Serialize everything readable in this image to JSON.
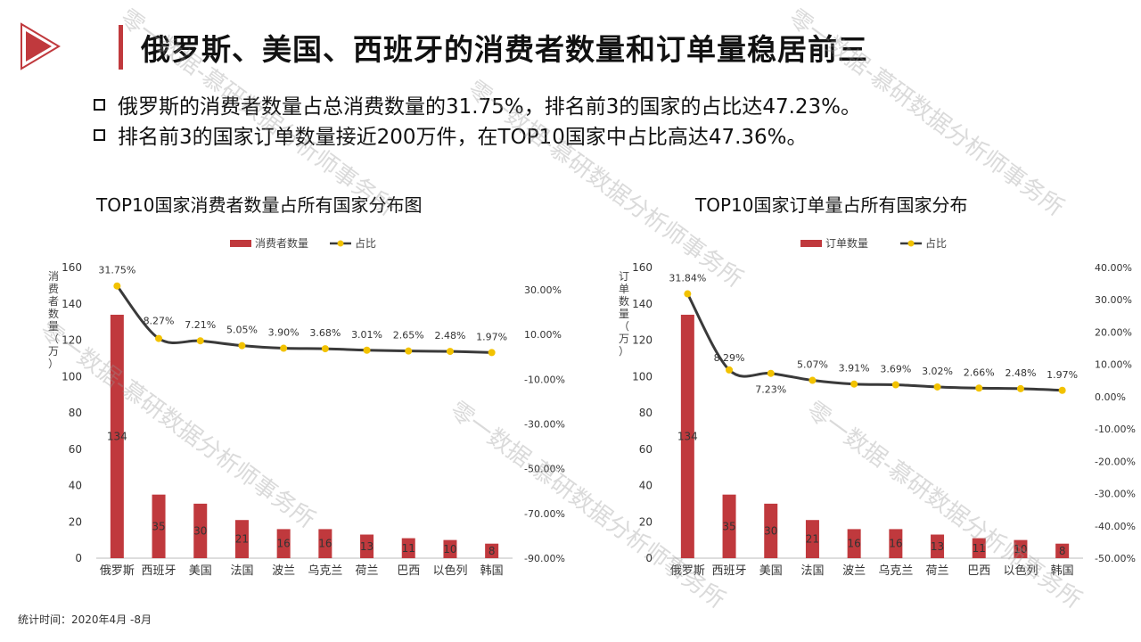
{
  "title": "俄罗斯、美国、西班牙的消费者数量和订单量稳居前三",
  "bullets": [
    "俄罗斯的消费者数量占总消费数量的31.75%，排名前3的国家的占比达47.23%。",
    "排名前3的国家订单数量接近200万件，在TOP10国家中占比高达47.36%。"
  ],
  "footer": "统计时间：2020年4月 -8月",
  "watermark": "零一数据-慕研数据分析师事务所",
  "colors": {
    "bar": "#c0393d",
    "line": "#3a3a3a",
    "marker": "#f2c200",
    "accent": "#c0393d"
  },
  "chart_data": [
    {
      "type": "bar",
      "title": "TOP10国家消费者数量占所有国家分布图",
      "ylabel": "消费者数量（万）",
      "legend": [
        "消费者数量",
        "占比"
      ],
      "legend_position": "top",
      "categories": [
        "俄罗斯",
        "西班牙",
        "美国",
        "法国",
        "波兰",
        "乌克兰",
        "荷兰",
        "巴西",
        "以色列",
        "韩国"
      ],
      "series": [
        {
          "name": "消费者数量",
          "type": "bar",
          "axis": "left",
          "values": [
            134,
            35,
            30,
            21,
            16,
            16,
            13,
            11,
            10,
            8
          ]
        },
        {
          "name": "占比",
          "type": "line",
          "axis": "right",
          "values": [
            31.75,
            8.27,
            7.21,
            5.05,
            3.9,
            3.68,
            3.01,
            2.65,
            2.48,
            1.97
          ],
          "labels": [
            "31.75%",
            "8.27%",
            "7.21%",
            "5.05%",
            "3.90%",
            "3.68%",
            "3.01%",
            "2.65%",
            "2.48%",
            "1.97%"
          ]
        }
      ],
      "ylim": [
        0,
        160
      ],
      "yticks": [
        0,
        20,
        40,
        60,
        80,
        100,
        120,
        140,
        160
      ],
      "y2lim": [
        -90,
        40
      ],
      "y2ticks": [
        -90,
        -70,
        -50,
        -30,
        -10,
        10,
        30
      ],
      "y2ticklabels": [
        "-90.00%",
        "-70.00%",
        "-50.00%",
        "-30.00%",
        "-10.00%",
        "10.00%",
        "30.00%"
      ],
      "grid": false
    },
    {
      "type": "bar",
      "title": "TOP10国家订单量占所有国家分布",
      "ylabel": "订单数量（万）",
      "legend": [
        "订单数量",
        "占比"
      ],
      "legend_position": "top",
      "categories": [
        "俄罗斯",
        "西班牙",
        "美国",
        "法国",
        "波兰",
        "乌克兰",
        "荷兰",
        "巴西",
        "以色列",
        "韩国"
      ],
      "series": [
        {
          "name": "订单数量",
          "type": "bar",
          "axis": "left",
          "values": [
            134,
            35,
            30,
            21,
            16,
            16,
            13,
            11,
            10,
            8
          ]
        },
        {
          "name": "占比",
          "type": "line",
          "axis": "right",
          "values": [
            31.84,
            8.29,
            7.23,
            5.07,
            3.91,
            3.69,
            3.02,
            2.66,
            2.48,
            1.97
          ],
          "labels": [
            "31.84%",
            "8.29%",
            "7.23%",
            "5.07%",
            "3.91%",
            "3.69%",
            "3.02%",
            "2.66%",
            "2.48%",
            "1.97%"
          ]
        }
      ],
      "ylim": [
        0,
        160
      ],
      "yticks": [
        0,
        20,
        40,
        60,
        80,
        100,
        120,
        140,
        160
      ],
      "y2lim": [
        -50,
        40
      ],
      "y2ticks": [
        -50,
        -40,
        -30,
        -20,
        -10,
        0,
        10,
        20,
        30,
        40
      ],
      "y2ticklabels": [
        "-50.00%",
        "-40.00%",
        "-30.00%",
        "-20.00%",
        "-10.00%",
        "0.00%",
        "10.00%",
        "20.00%",
        "30.00%",
        "40.00%"
      ],
      "grid": false
    }
  ]
}
